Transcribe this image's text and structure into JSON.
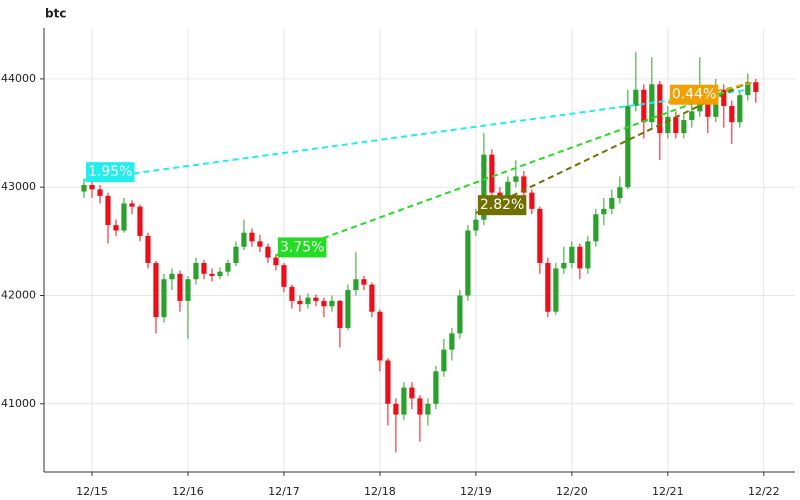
{
  "chart_data": {
    "type": "candlestick",
    "title": "btc",
    "categories": [
      null,
      "12/15",
      null,
      null,
      null,
      null,
      null,
      null,
      null,
      null,
      null,
      null,
      null,
      "12/16",
      null,
      null,
      null,
      null,
      null,
      null,
      null,
      null,
      null,
      null,
      null,
      "12/17",
      null,
      null,
      null,
      null,
      null,
      null,
      null,
      null,
      null,
      null,
      null,
      "12/18",
      null,
      null,
      null,
      null,
      null,
      null,
      null,
      null,
      null,
      null,
      null,
      "12/19",
      null,
      null,
      null,
      null,
      null,
      null,
      null,
      null,
      null,
      null,
      null,
      "12/20",
      null,
      null,
      null,
      null,
      null,
      null,
      null,
      null,
      null,
      null,
      null,
      "12/21",
      null,
      null,
      null,
      null,
      null,
      null,
      null,
      null,
      null,
      null,
      null,
      "12/22"
    ],
    "open": [
      42960,
      43020,
      42980,
      42920,
      42650,
      42600,
      42850,
      42820,
      42550,
      42300,
      41800,
      42150,
      42200,
      41950,
      42150,
      42300,
      42200,
      42180,
      42220,
      42300,
      42450,
      42580,
      42500,
      42450,
      42350,
      42280,
      42080,
      41950,
      41920,
      41980,
      41950,
      41900,
      41950,
      41700,
      42050,
      42150,
      42100,
      41850,
      41400,
      41000,
      40900,
      41150,
      41050,
      40900,
      41000,
      41300,
      41500,
      41650,
      42000,
      42600,
      42700,
      43300,
      42950,
      42900,
      43050,
      43100,
      42950,
      42800,
      42300,
      41850,
      42250,
      42300,
      42450,
      42250,
      42500,
      42750,
      42800,
      42900,
      43000,
      43750,
      43900,
      43600,
      43950,
      43500,
      43650,
      43500,
      43620,
      43700,
      43800,
      43650,
      43900,
      43750,
      43600,
      43850,
      43970,
      null
    ],
    "high": [
      43080,
      43070,
      43020,
      42950,
      42700,
      42900,
      42880,
      42840,
      42580,
      42320,
      42200,
      42250,
      42230,
      42180,
      42350,
      42330,
      42250,
      42260,
      42330,
      42500,
      42700,
      42620,
      42560,
      42480,
      42380,
      42300,
      42100,
      42000,
      42020,
      42010,
      41980,
      42000,
      41960,
      42100,
      42400,
      42180,
      42120,
      41870,
      41420,
      41050,
      41200,
      41200,
      41080,
      41050,
      41350,
      41600,
      41700,
      42050,
      42650,
      42800,
      43500,
      43350,
      43000,
      43100,
      43250,
      43150,
      42980,
      42820,
      42350,
      42300,
      42450,
      42500,
      42480,
      42550,
      42800,
      42900,
      42980,
      43100,
      43900,
      44250,
      43950,
      44200,
      43980,
      43750,
      43700,
      43680,
      43780,
      44200,
      43850,
      44000,
      43950,
      43800,
      43900,
      44050,
      44000,
      null
    ],
    "low": [
      42900,
      42900,
      42850,
      42480,
      42550,
      42580,
      42750,
      42500,
      42250,
      41650,
      41750,
      42050,
      41850,
      41600,
      42100,
      42150,
      42130,
      42150,
      42180,
      42270,
      42420,
      42450,
      42400,
      42300,
      42230,
      42030,
      41880,
      41850,
      41880,
      41900,
      41800,
      41850,
      41520,
      41680,
      42000,
      42050,
      41800,
      41300,
      40800,
      40550,
      40850,
      40950,
      40650,
      40800,
      40950,
      41250,
      41400,
      41600,
      41950,
      42550,
      42650,
      42900,
      42800,
      42850,
      43000,
      42900,
      42750,
      42200,
      41800,
      41820,
      42200,
      42250,
      42150,
      42200,
      42450,
      42650,
      42750,
      42850,
      42980,
      43700,
      43450,
      43550,
      43250,
      43450,
      43450,
      43450,
      43550,
      43650,
      43500,
      43600,
      43550,
      43400,
      43550,
      43800,
      43780,
      null
    ],
    "close": [
      43020,
      42980,
      42920,
      42650,
      42600,
      42850,
      42820,
      42550,
      42300,
      41800,
      42150,
      42200,
      41950,
      42150,
      42300,
      42200,
      42180,
      42220,
      42300,
      42450,
      42580,
      42500,
      42450,
      42350,
      42280,
      42080,
      41950,
      41920,
      41980,
      41950,
      41900,
      41950,
      41700,
      42050,
      42150,
      42100,
      41850,
      41400,
      41000,
      40900,
      41150,
      41050,
      40900,
      41000,
      41300,
      41500,
      41650,
      42000,
      42600,
      42700,
      43300,
      42950,
      42900,
      43050,
      43100,
      42950,
      42800,
      42300,
      41850,
      42250,
      42300,
      42450,
      42250,
      42500,
      42750,
      42800,
      42900,
      43000,
      43750,
      43900,
      43600,
      43950,
      43500,
      43650,
      43500,
      43620,
      43700,
      43800,
      43650,
      43900,
      43750,
      43600,
      43850,
      43970,
      43880,
      null
    ],
    "up_color": "#2ca02c",
    "down_color": "#e8101a",
    "ylim": [
      40370,
      44470
    ],
    "yticks": [
      41000,
      42000,
      43000,
      44000
    ],
    "grid": true,
    "annotations": [
      {
        "label": "1.95%",
        "color": "#22eeee",
        "start": [
          0,
          43065
        ],
        "end": [
          83,
          43900
        ]
      },
      {
        "label": "3.75%",
        "color": "#22dd22",
        "start": [
          24,
          42370
        ],
        "end": [
          83,
          43959
        ]
      },
      {
        "label": "2.82%",
        "color": "#707000",
        "start": [
          49,
          42760
        ],
        "end": [
          83,
          43966
        ]
      },
      {
        "label": "0.44%",
        "color": "#f0a000",
        "start": [
          73,
          43780
        ],
        "end": [
          84,
          43973
        ]
      }
    ]
  }
}
